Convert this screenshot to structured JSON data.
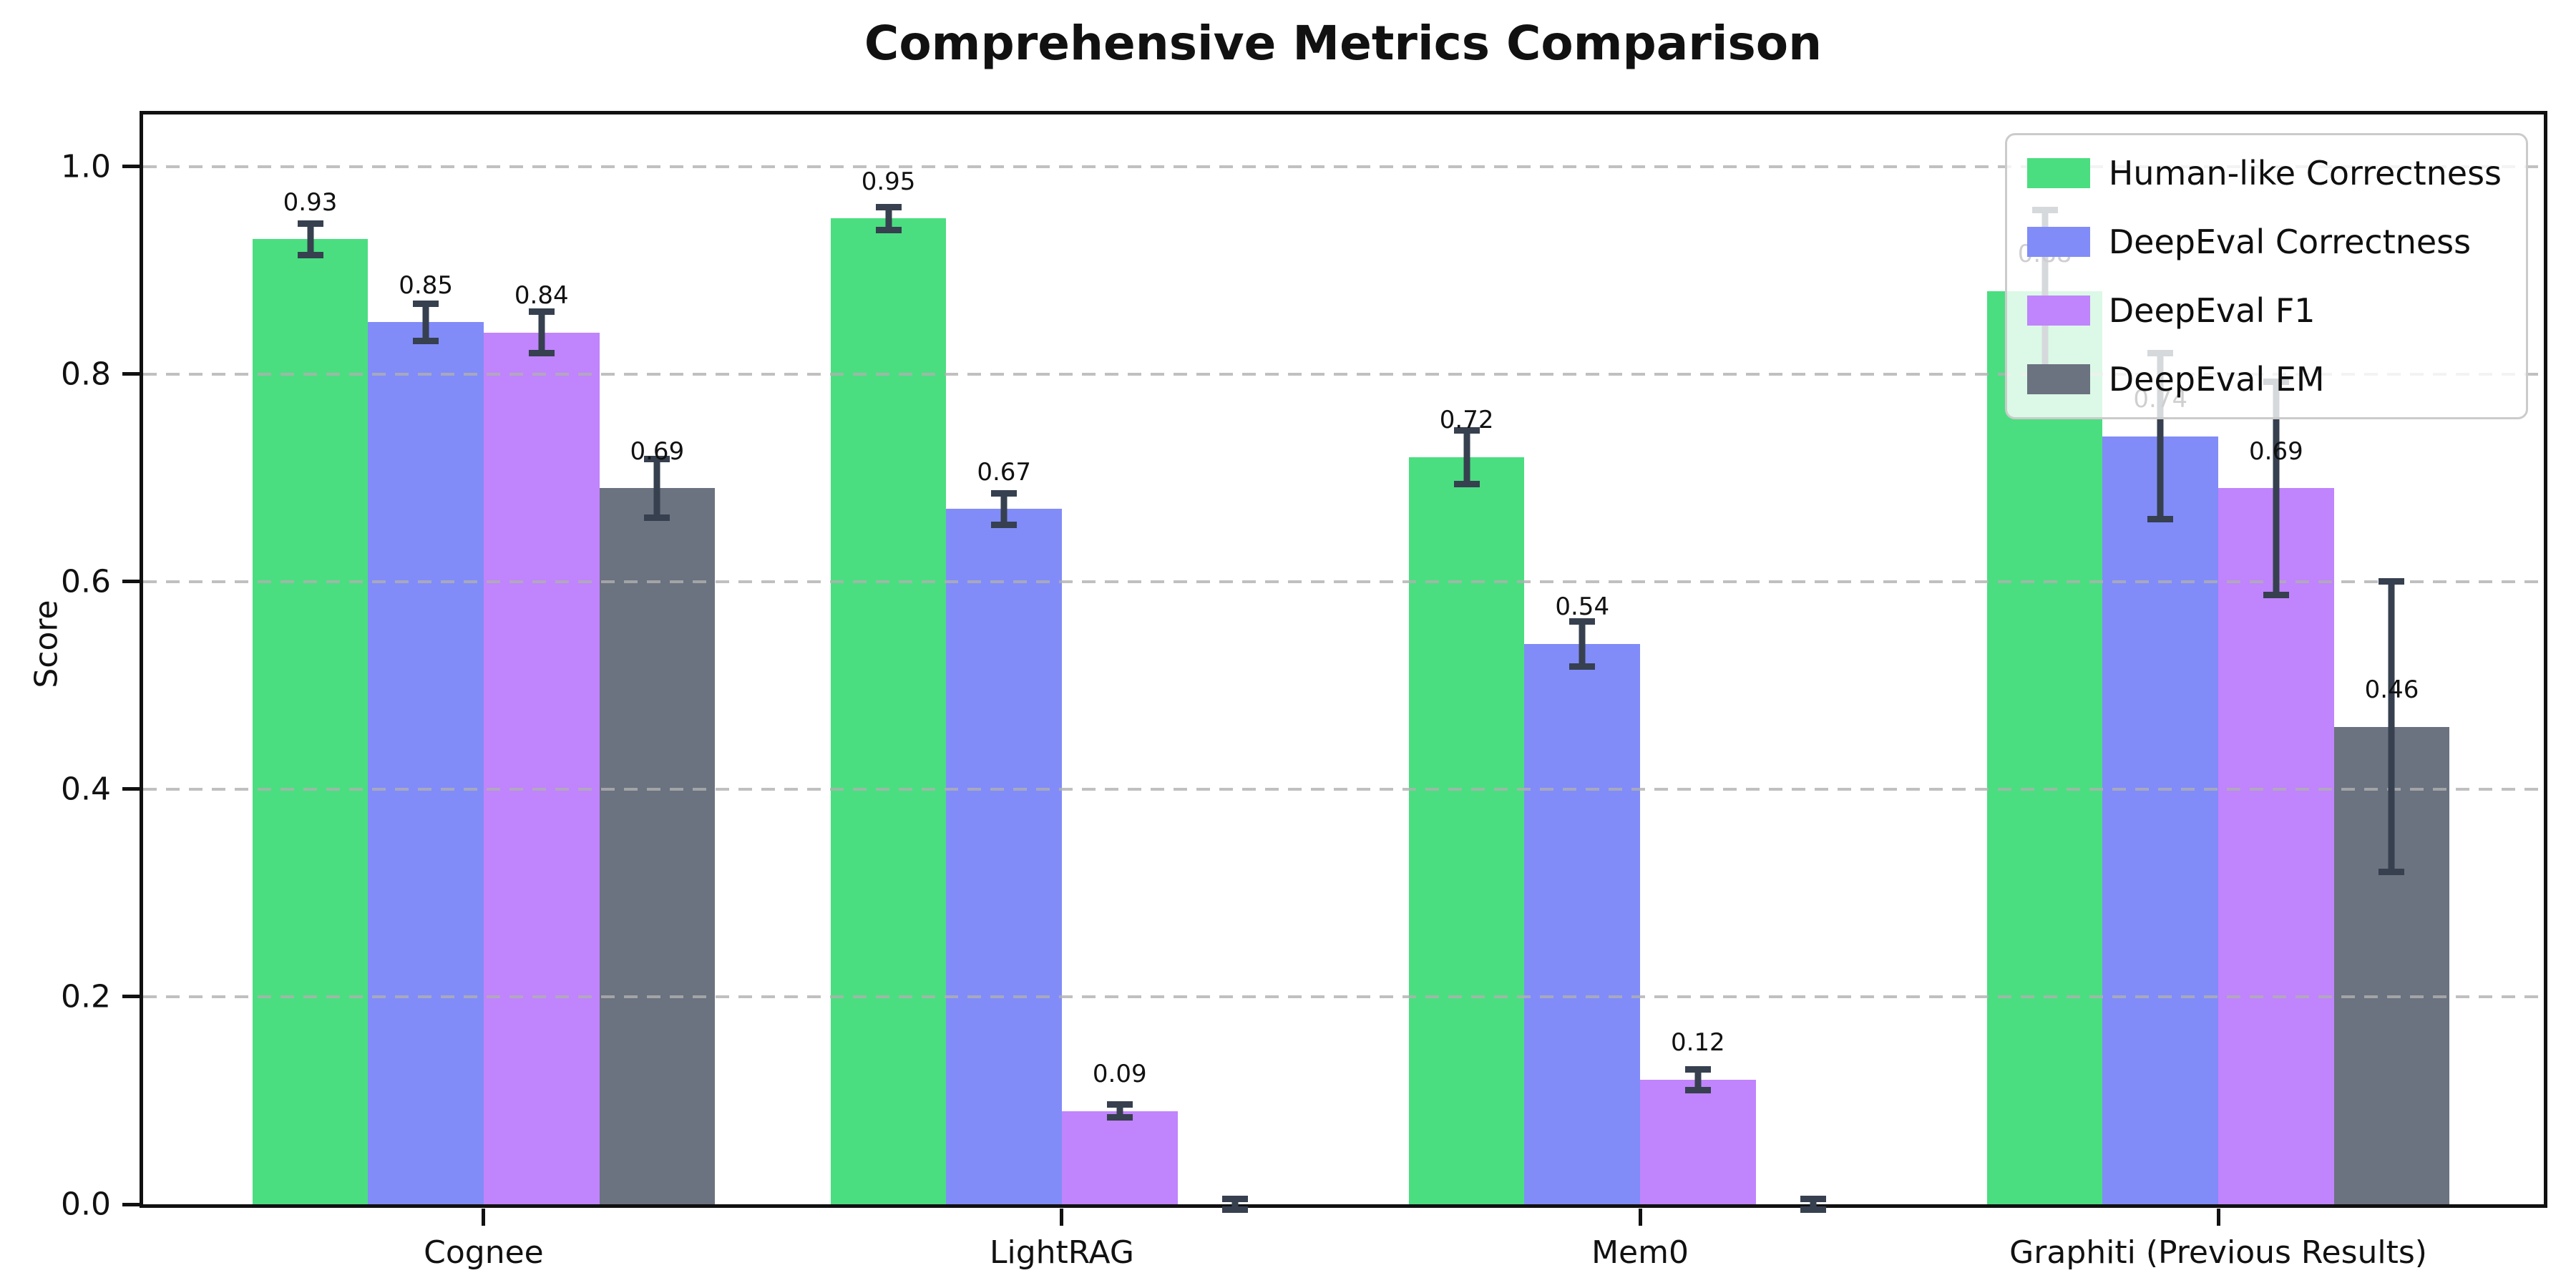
{
  "chart_data": {
    "type": "bar",
    "title": "Comprehensive Metrics Comparison",
    "xlabel": "",
    "ylabel": "Score",
    "categories": [
      "Cognee",
      "LightRAG",
      "Mem0",
      "Graphiti (Previous Results)"
    ],
    "series": [
      {
        "name": "Human-like Correctness",
        "color": "#4ade80",
        "values": [
          0.93,
          0.95,
          0.72,
          0.88
        ],
        "errors": [
          0.015,
          0.011,
          0.026,
          0.078
        ],
        "labels": [
          "0.93",
          "0.95",
          "0.72",
          "0.88"
        ]
      },
      {
        "name": "DeepEval Correctness",
        "color": "#818cf8",
        "values": [
          0.85,
          0.67,
          0.54,
          0.74
        ],
        "errors": [
          0.018,
          0.015,
          0.022,
          0.08
        ],
        "labels": [
          "0.85",
          "0.67",
          "0.54",
          "0.74"
        ]
      },
      {
        "name": "DeepEval F1",
        "color": "#c084fc",
        "values": [
          0.84,
          0.09,
          0.12,
          0.69
        ],
        "errors": [
          0.02,
          0.006,
          0.01,
          0.103
        ],
        "labels": [
          "0.84",
          "0.09",
          "0.12",
          "0.69"
        ]
      },
      {
        "name": "DeepEval EM",
        "color": "#6b7280",
        "values": [
          0.69,
          0.0,
          0.0,
          0.46
        ],
        "errors": [
          0.028,
          0.005,
          0.005,
          0.14
        ],
        "labels": [
          "0.69",
          null,
          null,
          "0.46"
        ]
      }
    ],
    "yticks": [
      0.0,
      0.2,
      0.4,
      0.6,
      0.8,
      1.0
    ],
    "ylim": [
      0,
      1.0503
    ],
    "xlim": [
      -0.589,
      3.563
    ],
    "bar_width": 0.2,
    "group_offsets": [
      -0.3,
      -0.1,
      0.1,
      0.3
    ],
    "label_y_offset": 0.022,
    "grid": "horizontal-dashed",
    "legend_position": "upper-right",
    "error_color": "#36404f"
  }
}
